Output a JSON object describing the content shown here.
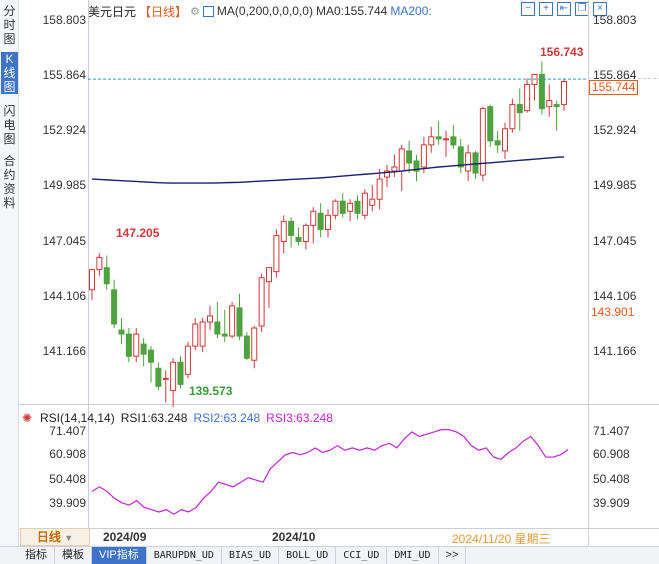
{
  "side_tabs": [
    "分时图",
    "K线图",
    "闪电图",
    "合约资料"
  ],
  "active_side_tab": 1,
  "header": {
    "symbol": "美元日元",
    "period": "【日线】",
    "settings_icon": "gear-icon",
    "ma_label": "MA(0,200,0,0,0,0)",
    "ma0": "MA0:155.744",
    "ma200": "MA200:"
  },
  "window_controls": [
    "minus-icon",
    "plus-icon",
    "collapse-icon",
    "restore-icon",
    "close-icon"
  ],
  "price_axis": {
    "left_ticks": [
      "158.803",
      "155.864",
      "152.924",
      "149.985",
      "147.045",
      "144.106",
      "141.166"
    ],
    "right_ticks": [
      "158.803",
      "155.864",
      "152.924",
      "149.985",
      "147.045",
      "144.106",
      "141.166"
    ],
    "current_price": "155.744",
    "secondary_price": "143.901",
    "high_marker": "156.743",
    "low_marker": "139.573",
    "left_high_marker": "147.205"
  },
  "rsi": {
    "label": "RSI(14,14,14)",
    "rsi1": "RSI1:63.248",
    "rsi2": "RSI2:63.248",
    "rsi3": "RSI3:63.248",
    "ticks": [
      "71.407",
      "60.908",
      "50.408",
      "39.909"
    ]
  },
  "x_axis": {
    "labels": [
      "2024/09",
      "2024/10"
    ],
    "current_date": "2024/11/20 星期三"
  },
  "period_selector": "日线",
  "bottom_tabs": [
    "指标",
    "模板",
    "VIP指标",
    "BARUPDN_UD",
    "BIAS_UD",
    "BOLL_UD",
    "CCI_UD",
    "DMI_UD",
    ">>"
  ],
  "active_bottom_tab": 2,
  "colors": {
    "up": "#d0393a",
    "down": "#4ea23f",
    "ma200": "#1a1f6e",
    "rsi": "#c026d3",
    "accent": "#3d73c9",
    "price_tag": "#e85a1a"
  },
  "chart_data": {
    "type": "candlestick",
    "price_range": [
      138.3,
      160.0
    ],
    "candles": [
      {
        "o": 145.4,
        "h": 146.3,
        "l": 144.9,
        "c": 146.4
      },
      {
        "o": 146.4,
        "h": 147.205,
        "l": 146.1,
        "c": 147.0
      },
      {
        "o": 146.5,
        "h": 147.1,
        "l": 145.4,
        "c": 145.7
      },
      {
        "o": 145.4,
        "h": 145.9,
        "l": 143.5,
        "c": 143.7
      },
      {
        "o": 143.4,
        "h": 144.0,
        "l": 142.7,
        "c": 143.2
      },
      {
        "o": 143.2,
        "h": 143.5,
        "l": 141.8,
        "c": 142.1
      },
      {
        "o": 142.1,
        "h": 143.5,
        "l": 141.8,
        "c": 143.2
      },
      {
        "o": 142.7,
        "h": 143.0,
        "l": 141.6,
        "c": 142.2
      },
      {
        "o": 142.4,
        "h": 142.6,
        "l": 140.8,
        "c": 141.8
      },
      {
        "o": 141.5,
        "h": 141.8,
        "l": 140.4,
        "c": 140.6
      },
      {
        "o": 141.0,
        "h": 141.4,
        "l": 139.8,
        "c": 141.0
      },
      {
        "o": 140.4,
        "h": 142.0,
        "l": 139.573,
        "c": 141.8
      },
      {
        "o": 141.8,
        "h": 142.1,
        "l": 140.5,
        "c": 140.7
      },
      {
        "o": 141.2,
        "h": 142.8,
        "l": 141.0,
        "c": 142.6
      },
      {
        "o": 142.6,
        "h": 144.0,
        "l": 142.4,
        "c": 143.7
      },
      {
        "o": 142.6,
        "h": 144.0,
        "l": 142.3,
        "c": 143.8
      },
      {
        "o": 143.8,
        "h": 144.6,
        "l": 143.4,
        "c": 144.1
      },
      {
        "o": 143.8,
        "h": 144.8,
        "l": 143.0,
        "c": 143.2
      },
      {
        "o": 143.2,
        "h": 144.4,
        "l": 142.8,
        "c": 143.1
      },
      {
        "o": 143.1,
        "h": 144.8,
        "l": 143.0,
        "c": 144.6
      },
      {
        "o": 144.5,
        "h": 145.2,
        "l": 142.9,
        "c": 143.1
      },
      {
        "o": 143.1,
        "h": 143.3,
        "l": 141.9,
        "c": 142.0
      },
      {
        "o": 141.9,
        "h": 143.6,
        "l": 141.5,
        "c": 143.5
      },
      {
        "o": 143.6,
        "h": 146.2,
        "l": 143.3,
        "c": 146.0
      },
      {
        "o": 145.8,
        "h": 146.4,
        "l": 144.5,
        "c": 146.5
      },
      {
        "o": 146.3,
        "h": 148.4,
        "l": 146.0,
        "c": 148.1
      },
      {
        "o": 147.8,
        "h": 149.1,
        "l": 147.2,
        "c": 148.8
      },
      {
        "o": 148.8,
        "h": 149.0,
        "l": 147.5,
        "c": 148.1
      },
      {
        "o": 148.0,
        "h": 148.5,
        "l": 147.6,
        "c": 147.8
      },
      {
        "o": 147.8,
        "h": 148.7,
        "l": 147.4,
        "c": 148.6
      },
      {
        "o": 148.6,
        "h": 149.5,
        "l": 147.7,
        "c": 149.3
      },
      {
        "o": 149.2,
        "h": 149.7,
        "l": 148.0,
        "c": 148.4
      },
      {
        "o": 148.4,
        "h": 149.4,
        "l": 148.0,
        "c": 149.1
      },
      {
        "o": 149.1,
        "h": 149.9,
        "l": 148.9,
        "c": 149.8
      },
      {
        "o": 149.8,
        "h": 150.2,
        "l": 149.0,
        "c": 149.2
      },
      {
        "o": 149.3,
        "h": 149.9,
        "l": 148.8,
        "c": 149.7
      },
      {
        "o": 149.8,
        "h": 150.1,
        "l": 148.9,
        "c": 149.2
      },
      {
        "o": 149.1,
        "h": 150.4,
        "l": 148.9,
        "c": 150.2
      },
      {
        "o": 149.6,
        "h": 150.6,
        "l": 149.3,
        "c": 149.9
      },
      {
        "o": 149.9,
        "h": 151.4,
        "l": 149.4,
        "c": 150.9
      },
      {
        "o": 151.0,
        "h": 151.6,
        "l": 150.5,
        "c": 151.3
      },
      {
        "o": 151.3,
        "h": 152.1,
        "l": 151.0,
        "c": 151.5
      },
      {
        "o": 151.3,
        "h": 152.6,
        "l": 150.3,
        "c": 152.4
      },
      {
        "o": 152.3,
        "h": 152.8,
        "l": 151.2,
        "c": 151.7
      },
      {
        "o": 151.8,
        "h": 152.1,
        "l": 150.8,
        "c": 151.3
      },
      {
        "o": 151.5,
        "h": 153.0,
        "l": 151.2,
        "c": 152.6
      },
      {
        "o": 152.6,
        "h": 153.5,
        "l": 152.2,
        "c": 153.0
      },
      {
        "o": 153.0,
        "h": 153.8,
        "l": 152.6,
        "c": 152.9
      },
      {
        "o": 152.9,
        "h": 153.3,
        "l": 152.0,
        "c": 152.9
      },
      {
        "o": 153.0,
        "h": 153.6,
        "l": 152.4,
        "c": 152.6
      },
      {
        "o": 152.5,
        "h": 152.9,
        "l": 151.2,
        "c": 151.5
      },
      {
        "o": 151.3,
        "h": 152.6,
        "l": 150.8,
        "c": 152.2
      },
      {
        "o": 152.2,
        "h": 152.3,
        "l": 150.9,
        "c": 151.2
      },
      {
        "o": 151.1,
        "h": 154.5,
        "l": 150.8,
        "c": 154.4
      },
      {
        "o": 154.5,
        "h": 154.6,
        "l": 152.5,
        "c": 152.8
      },
      {
        "o": 152.8,
        "h": 153.3,
        "l": 152.2,
        "c": 152.6
      },
      {
        "o": 152.3,
        "h": 153.7,
        "l": 151.9,
        "c": 153.4
      },
      {
        "o": 153.4,
        "h": 154.9,
        "l": 153.2,
        "c": 154.6
      },
      {
        "o": 154.6,
        "h": 155.4,
        "l": 153.3,
        "c": 154.2
      },
      {
        "o": 154.3,
        "h": 155.9,
        "l": 154.2,
        "c": 155.6
      },
      {
        "o": 155.6,
        "h": 156.1,
        "l": 154.8,
        "c": 156.1
      },
      {
        "o": 156.1,
        "h": 156.743,
        "l": 154.1,
        "c": 154.4
      },
      {
        "o": 154.5,
        "h": 155.6,
        "l": 154.0,
        "c": 154.8
      },
      {
        "o": 154.6,
        "h": 154.8,
        "l": 153.3,
        "c": 154.5
      },
      {
        "o": 154.6,
        "h": 155.9,
        "l": 154.3,
        "c": 155.744
      }
    ],
    "ma200": [
      150.9,
      150.88,
      150.86,
      150.84,
      150.82,
      150.8,
      150.78,
      150.76,
      150.74,
      150.72,
      150.71,
      150.7,
      150.7,
      150.7,
      150.7,
      150.7,
      150.7,
      150.71,
      150.72,
      150.73,
      150.74,
      150.76,
      150.78,
      150.8,
      150.82,
      150.84,
      150.86,
      150.88,
      150.9,
      150.92,
      150.94,
      150.96,
      150.99,
      151.02,
      151.05,
      151.08,
      151.11,
      151.14,
      151.17,
      151.2,
      151.23,
      151.26,
      151.3,
      151.34,
      151.38,
      151.42,
      151.46,
      151.5,
      151.53,
      151.56,
      151.59,
      151.62,
      151.65,
      151.68,
      151.71,
      151.74,
      151.77,
      151.8,
      151.83,
      151.86,
      151.89,
      151.92,
      151.95,
      151.98,
      152.0
    ],
    "rsi_range": [
      34,
      74
    ],
    "rsi_values": [
      45,
      47,
      45,
      42,
      40,
      39,
      41,
      38,
      37,
      36,
      37,
      35,
      37,
      36,
      38,
      42,
      45,
      49,
      48,
      47,
      49,
      51,
      50,
      49,
      55,
      58,
      61,
      62,
      61,
      62,
      64,
      62,
      63,
      65,
      63,
      64,
      63,
      64,
      63,
      65,
      66,
      64,
      68,
      71,
      69,
      70,
      71,
      72,
      72,
      71,
      69,
      65,
      63,
      64,
      60,
      59,
      62,
      64,
      67,
      69,
      65,
      60,
      60,
      61,
      63.248
    ]
  }
}
